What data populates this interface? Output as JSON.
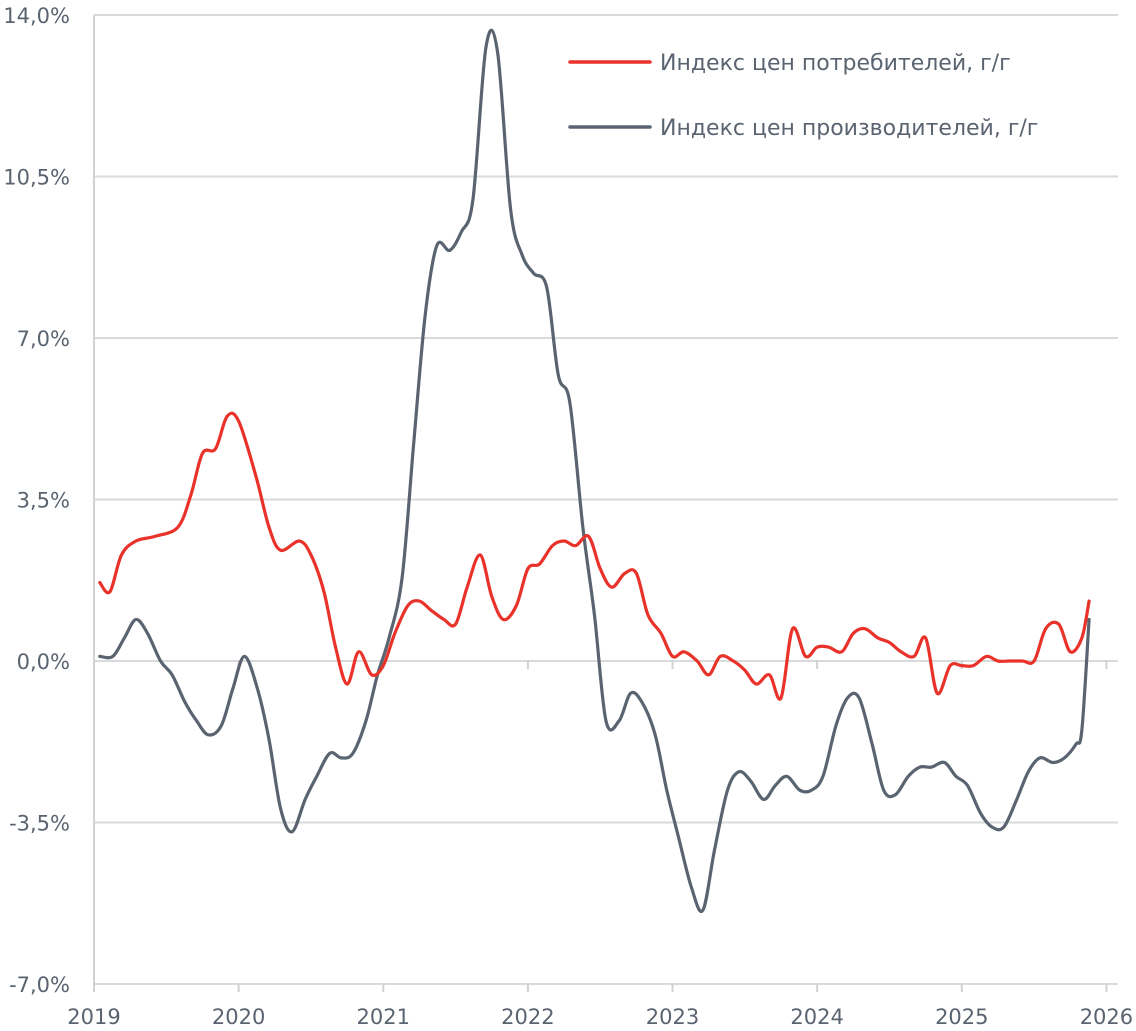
{
  "chart_data": {
    "type": "line",
    "title": "",
    "xlabel": "",
    "ylabel": "",
    "ylim": [
      -7.0,
      14.0
    ],
    "xlim": [
      2019.0,
      2026.08
    ],
    "grid": true,
    "legend_position": "top-right",
    "y_ticks": [
      14.0,
      10.5,
      7.0,
      3.5,
      0.0,
      -3.5,
      -7.0
    ],
    "y_tick_labels": [
      "14,0%",
      "10,5%",
      "7,0%",
      "3,5%",
      "0,0%",
      "-3,5%",
      "-7,0%"
    ],
    "x_ticks": [
      2019,
      2020,
      2021,
      2022,
      2023,
      2024,
      2025,
      2026
    ],
    "x_tick_labels": [
      "2019",
      "2020",
      "2021",
      "2022",
      "2023",
      "2024",
      "2025",
      "2026"
    ],
    "series": [
      {
        "name": "Индекс цен потребителей, г/г",
        "color": "#e8322a",
        "points": [
          [
            2019.04,
            1.7
          ],
          [
            2019.11,
            1.5
          ],
          [
            2019.19,
            2.3
          ],
          [
            2019.29,
            2.6
          ],
          [
            2019.42,
            2.7
          ],
          [
            2019.58,
            2.9
          ],
          [
            2019.67,
            3.6
          ],
          [
            2019.75,
            4.5
          ],
          [
            2019.84,
            4.6
          ],
          [
            2019.92,
            5.3
          ],
          [
            2020.0,
            5.2
          ],
          [
            2020.12,
            4.0
          ],
          [
            2020.21,
            2.9
          ],
          [
            2020.29,
            2.4
          ],
          [
            2020.42,
            2.6
          ],
          [
            2020.5,
            2.3
          ],
          [
            2020.59,
            1.5
          ],
          [
            2020.67,
            0.3
          ],
          [
            2020.75,
            -0.5
          ],
          [
            2020.83,
            0.2
          ],
          [
            2020.92,
            -0.3
          ],
          [
            2021.0,
            -0.1
          ],
          [
            2021.08,
            0.6
          ],
          [
            2021.17,
            1.2
          ],
          [
            2021.25,
            1.3
          ],
          [
            2021.33,
            1.1
          ],
          [
            2021.42,
            0.9
          ],
          [
            2021.5,
            0.8
          ],
          [
            2021.58,
            1.6
          ],
          [
            2021.67,
            2.3
          ],
          [
            2021.75,
            1.4
          ],
          [
            2021.83,
            0.9
          ],
          [
            2021.92,
            1.2
          ],
          [
            2022.0,
            2.0
          ],
          [
            2022.08,
            2.1
          ],
          [
            2022.17,
            2.5
          ],
          [
            2022.25,
            2.6
          ],
          [
            2022.33,
            2.5
          ],
          [
            2022.42,
            2.7
          ],
          [
            2022.5,
            2.0
          ],
          [
            2022.58,
            1.6
          ],
          [
            2022.67,
            1.9
          ],
          [
            2022.75,
            1.9
          ],
          [
            2022.83,
            1.0
          ],
          [
            2022.92,
            0.6
          ],
          [
            2023.0,
            0.1
          ],
          [
            2023.08,
            0.2
          ],
          [
            2023.17,
            0.0
          ],
          [
            2023.25,
            -0.3
          ],
          [
            2023.33,
            0.1
          ],
          [
            2023.42,
            0.0
          ],
          [
            2023.5,
            -0.2
          ],
          [
            2023.58,
            -0.5
          ],
          [
            2023.67,
            -0.3
          ],
          [
            2023.75,
            -0.8
          ],
          [
            2023.83,
            0.7
          ],
          [
            2023.92,
            0.1
          ],
          [
            2024.0,
            0.3
          ],
          [
            2024.08,
            0.3
          ],
          [
            2024.17,
            0.2
          ],
          [
            2024.25,
            0.6
          ],
          [
            2024.33,
            0.7
          ],
          [
            2024.42,
            0.5
          ],
          [
            2024.5,
            0.4
          ],
          [
            2024.58,
            0.2
          ],
          [
            2024.67,
            0.1
          ],
          [
            2024.75,
            0.5
          ],
          [
            2024.83,
            -0.7
          ],
          [
            2024.92,
            -0.1
          ],
          [
            2025.0,
            -0.1
          ],
          [
            2025.08,
            -0.1
          ],
          [
            2025.17,
            0.1
          ],
          [
            2025.25,
            0.0
          ],
          [
            2025.33,
            0.0
          ],
          [
            2025.42,
            0.0
          ],
          [
            2025.5,
            0.0
          ],
          [
            2025.58,
            0.7
          ],
          [
            2025.67,
            0.8
          ],
          [
            2025.75,
            0.2
          ],
          [
            2025.83,
            0.5
          ],
          [
            2025.88,
            1.3
          ]
        ]
      },
      {
        "name": "Индекс цен производителей, г/г",
        "color": "#5a6470",
        "points": [
          [
            2019.04,
            0.1
          ],
          [
            2019.13,
            0.1
          ],
          [
            2019.21,
            0.5
          ],
          [
            2019.29,
            0.9
          ],
          [
            2019.37,
            0.6
          ],
          [
            2019.46,
            0.0
          ],
          [
            2019.54,
            -0.3
          ],
          [
            2019.63,
            -0.9
          ],
          [
            2019.71,
            -1.3
          ],
          [
            2019.79,
            -1.6
          ],
          [
            2019.88,
            -1.4
          ],
          [
            2019.96,
            -0.6
          ],
          [
            2020.04,
            0.1
          ],
          [
            2020.13,
            -0.6
          ],
          [
            2020.21,
            -1.7
          ],
          [
            2020.29,
            -3.2
          ],
          [
            2020.37,
            -3.7
          ],
          [
            2020.46,
            -3.0
          ],
          [
            2020.54,
            -2.5
          ],
          [
            2020.63,
            -2.0
          ],
          [
            2020.71,
            -2.1
          ],
          [
            2020.79,
            -2.0
          ],
          [
            2020.88,
            -1.3
          ],
          [
            2020.96,
            -0.3
          ],
          [
            2021.04,
            0.5
          ],
          [
            2021.13,
            1.8
          ],
          [
            2021.21,
            4.7
          ],
          [
            2021.29,
            7.5
          ],
          [
            2021.37,
            9.0
          ],
          [
            2021.46,
            8.9
          ],
          [
            2021.54,
            9.3
          ],
          [
            2021.62,
            10.0
          ],
          [
            2021.71,
            13.3
          ],
          [
            2021.79,
            13.2
          ],
          [
            2021.88,
            9.8
          ],
          [
            2021.96,
            8.8
          ],
          [
            2022.04,
            8.4
          ],
          [
            2022.13,
            8.1
          ],
          [
            2022.21,
            6.2
          ],
          [
            2022.29,
            5.6
          ],
          [
            2022.38,
            2.9
          ],
          [
            2022.46,
            1.0
          ],
          [
            2022.54,
            -1.3
          ],
          [
            2022.63,
            -1.3
          ],
          [
            2022.71,
            -0.7
          ],
          [
            2022.79,
            -0.9
          ],
          [
            2022.88,
            -1.6
          ],
          [
            2022.96,
            -2.8
          ],
          [
            2023.04,
            -3.8
          ],
          [
            2023.13,
            -4.9
          ],
          [
            2023.21,
            -5.4
          ],
          [
            2023.29,
            -4.1
          ],
          [
            2023.38,
            -2.8
          ],
          [
            2023.46,
            -2.4
          ],
          [
            2023.54,
            -2.6
          ],
          [
            2023.63,
            -3.0
          ],
          [
            2023.71,
            -2.7
          ],
          [
            2023.79,
            -2.5
          ],
          [
            2023.88,
            -2.8
          ],
          [
            2023.96,
            -2.8
          ],
          [
            2024.04,
            -2.5
          ],
          [
            2024.13,
            -1.4
          ],
          [
            2024.21,
            -0.8
          ],
          [
            2024.29,
            -0.8
          ],
          [
            2024.38,
            -1.8
          ],
          [
            2024.46,
            -2.8
          ],
          [
            2024.54,
            -2.9
          ],
          [
            2024.63,
            -2.5
          ],
          [
            2024.71,
            -2.3
          ],
          [
            2024.79,
            -2.3
          ],
          [
            2024.88,
            -2.2
          ],
          [
            2024.96,
            -2.5
          ],
          [
            2025.04,
            -2.7
          ],
          [
            2025.13,
            -3.3
          ],
          [
            2025.21,
            -3.6
          ],
          [
            2025.29,
            -3.6
          ],
          [
            2025.38,
            -3.0
          ],
          [
            2025.46,
            -2.4
          ],
          [
            2025.54,
            -2.1
          ],
          [
            2025.63,
            -2.2
          ],
          [
            2025.71,
            -2.1
          ],
          [
            2025.79,
            -1.8
          ],
          [
            2025.83,
            -1.5
          ],
          [
            2025.88,
            0.9
          ]
        ]
      }
    ]
  }
}
